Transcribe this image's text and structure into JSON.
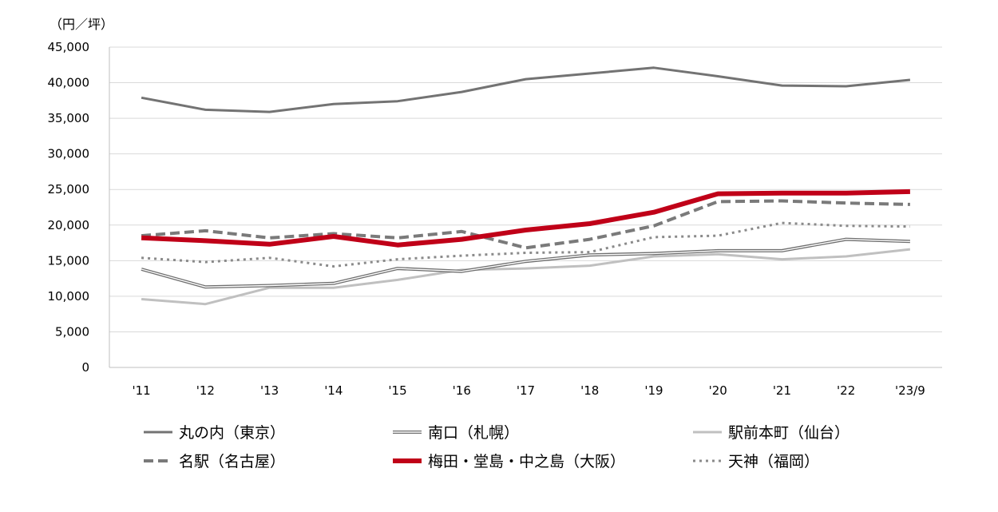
{
  "chart_data": {
    "type": "line",
    "unit_label": "（円／坪）",
    "x": [
      "'11",
      "'12",
      "'13",
      "'14",
      "'15",
      "'16",
      "'17",
      "'18",
      "'19",
      "'20",
      "'21",
      "'22",
      "'23/9"
    ],
    "ylim": [
      0,
      45000
    ],
    "yticks": [
      "0",
      "5,000",
      "10,000",
      "15,000",
      "20,000",
      "25,000",
      "30,000",
      "35,000",
      "40,000",
      "45,000"
    ],
    "grid": true,
    "legend_position": "bottom",
    "series": [
      {
        "name": "丸の内（東京）",
        "color": "#737373",
        "style": "solid",
        "values": [
          37900,
          36200,
          35900,
          37000,
          37400,
          38700,
          40500,
          41300,
          42100,
          40900,
          39600,
          39500,
          40400
        ]
      },
      {
        "name": "南口（札幌）",
        "color": "#6e6e6e",
        "style": "double",
        "values": [
          13800,
          11300,
          11500,
          11800,
          13900,
          13500,
          14900,
          15800,
          16000,
          16400,
          16400,
          18000,
          17700
        ]
      },
      {
        "name": "駅前本町（仙台）",
        "color": "#c0c0c0",
        "style": "solid",
        "values": [
          9600,
          8900,
          11200,
          11200,
          12300,
          13700,
          13900,
          14300,
          15600,
          15900,
          15200,
          15600,
          16600
        ]
      },
      {
        "name": "名駅（名古屋）",
        "color": "#7a7a7a",
        "style": "dashed",
        "values": [
          18500,
          19200,
          18200,
          18800,
          18200,
          19100,
          16800,
          18000,
          19900,
          23300,
          23400,
          23100,
          22900
        ]
      },
      {
        "name": "梅田・堂島・中之島（大阪）",
        "color": "#c00018",
        "style": "thick",
        "values": [
          18200,
          17800,
          17300,
          18400,
          17200,
          18000,
          19300,
          20200,
          21800,
          24400,
          24500,
          24500,
          24700
        ]
      },
      {
        "name": "天神（福岡）",
        "color": "#8a8a8a",
        "style": "dotted",
        "values": [
          15400,
          14800,
          15400,
          14200,
          15200,
          15700,
          16100,
          16200,
          18300,
          18500,
          20300,
          19900,
          19800
        ]
      }
    ]
  }
}
